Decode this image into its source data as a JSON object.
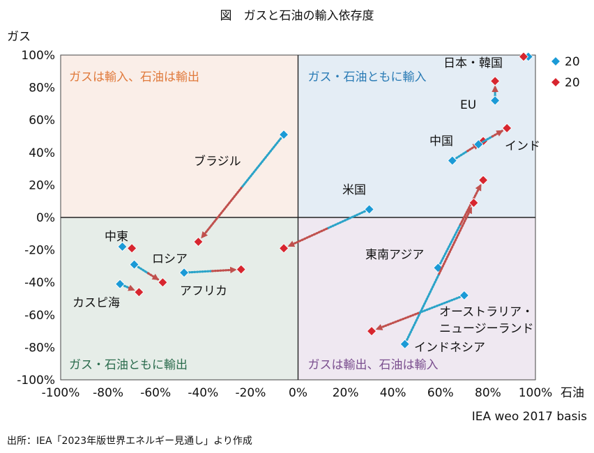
{
  "page": {
    "source": "出所：IEA「2023年版世界エネルギー見通し」より作成"
  },
  "chart_data": {
    "type": "scatter",
    "title": "図　ガスと石油の輸入依存度",
    "xlabel": "石油",
    "ylabel": "ガス",
    "note": "IEA weo 2017 basis",
    "xlim": [
      -100,
      100
    ],
    "ylim": [
      -100,
      100
    ],
    "xticks": [
      "-100%",
      "-80%",
      "-60%",
      "-40%",
      "-20%",
      "0%",
      "20%",
      "40%",
      "60%",
      "80%",
      "100%"
    ],
    "yticks": [
      "100%",
      "80%",
      "60%",
      "40%",
      "20%",
      "0%",
      "-20%",
      "-40%",
      "-60%",
      "-80%",
      "-100%"
    ],
    "legend": [
      {
        "name": "20",
        "color": "#1b9ad6"
      },
      {
        "name": "20",
        "color": "#d7262f"
      }
    ],
    "quadrants": [
      {
        "label": "ガスは輸入、石油は輸出",
        "fill": "#faeee8",
        "color": "#e07a3c"
      },
      {
        "label": "ガス・石油ともに輸入",
        "fill": "#e4edf5",
        "color": "#2a7bb5"
      },
      {
        "label": "ガス・石油ともに輸出",
        "fill": "#e6ede8",
        "color": "#2a6b4c"
      },
      {
        "label": "ガスは輸出、石油は輸入",
        "fill": "#efe8f1",
        "color": "#7b4f8f"
      }
    ],
    "series": [
      {
        "name": "日本・韓国",
        "from": [
          97,
          99
        ],
        "to": [
          95,
          99
        ]
      },
      {
        "name": "EU",
        "from": [
          83,
          72
        ],
        "to": [
          83,
          84
        ]
      },
      {
        "name": "中国",
        "from": [
          65,
          35
        ],
        "to": [
          78,
          47
        ]
      },
      {
        "name": "インド",
        "from": [
          76,
          45
        ],
        "to": [
          88,
          55
        ]
      },
      {
        "name": "ブラジル",
        "from": [
          -6,
          51
        ],
        "to": [
          -42,
          -15
        ]
      },
      {
        "name": "米国",
        "from": [
          30,
          5
        ],
        "to": [
          -6,
          -19
        ]
      },
      {
        "name": "中東",
        "from": [
          -74,
          -18
        ],
        "to": [
          -70,
          -19
        ]
      },
      {
        "name": "ロシア",
        "from": [
          -69,
          -29
        ],
        "to": [
          -57,
          -40
        ]
      },
      {
        "name": "アフリカ",
        "from": [
          -48,
          -34
        ],
        "to": [
          -24,
          -32
        ]
      },
      {
        "name": "カスピ海",
        "from": [
          -75,
          -41
        ],
        "to": [
          -67,
          -46
        ]
      },
      {
        "name": "東南アジア",
        "from": [
          59,
          -31
        ],
        "to": [
          78,
          23
        ]
      },
      {
        "name": "インドネシア",
        "from": [
          45,
          -78
        ],
        "to": [
          74,
          9
        ]
      },
      {
        "name": "オーストラリア・ニュージーランド",
        "from": [
          70,
          -48
        ],
        "to": [
          31,
          -70
        ]
      }
    ]
  }
}
